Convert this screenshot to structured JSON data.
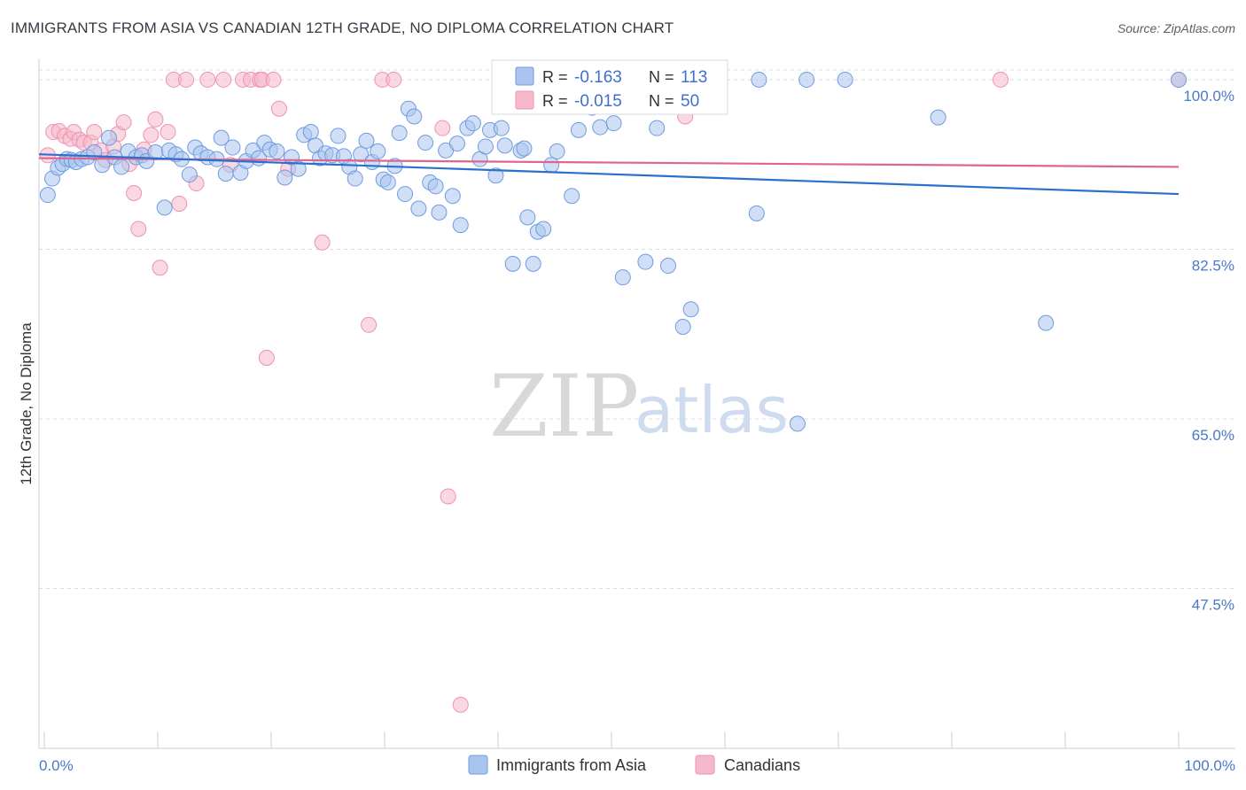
{
  "title": "IMMIGRANTS FROM ASIA VS CANADIAN 12TH GRADE, NO DIPLOMA CORRELATION CHART",
  "source": "Source: ZipAtlas.com",
  "watermark": {
    "zip": "ZIP",
    "atlas": "atlas"
  },
  "colors": {
    "blue_fill": "#a9c4ee",
    "blue_stroke": "#6f9be0",
    "blue_line": "#2b6fcf",
    "pink_fill": "#f6b8cb",
    "pink_stroke": "#ee93af",
    "pink_line": "#e0648f",
    "grid": "#d9dde3",
    "axis_label": "#4a78c8"
  },
  "legend_box": {
    "r_label": "R = ",
    "n_label": "N = ",
    "rows": [
      {
        "series": "Immigrants from Asia",
        "r": "-0.163",
        "n": "113"
      },
      {
        "series": "Canadians",
        "r": "-0.015",
        "n": "50"
      }
    ]
  },
  "bottom_legend": [
    "Immigrants from Asia",
    "Canadians"
  ],
  "chart_data": {
    "type": "scatter",
    "xlabel": "",
    "ylabel": "12th Grade, No Diploma",
    "xlim": [
      0,
      100
    ],
    "ylim": [
      31,
      101
    ],
    "x_tick_labels": [
      "0.0%",
      "100.0%"
    ],
    "y_ticks": [
      100.0,
      82.5,
      65.0,
      47.5
    ],
    "y_tick_labels": [
      "100.0%",
      "82.5%",
      "65.0%",
      "47.5%"
    ],
    "grid": true,
    "series": [
      {
        "name": "Immigrants from Asia",
        "color": "#a9c4ee",
        "trend": {
          "x": [
            0,
            100
          ],
          "y": [
            92.3,
            88.2
          ]
        },
        "points": [
          [
            0.3,
            88.1
          ],
          [
            0.7,
            89.8
          ],
          [
            1.2,
            90.9
          ],
          [
            1.6,
            91.3
          ],
          [
            2.0,
            91.8
          ],
          [
            2.4,
            91.7
          ],
          [
            2.8,
            91.5
          ],
          [
            3.3,
            91.8
          ],
          [
            3.8,
            92.0
          ],
          [
            4.4,
            92.5
          ],
          [
            5.1,
            91.2
          ],
          [
            5.7,
            94.0
          ],
          [
            6.2,
            92.0
          ],
          [
            6.8,
            91.0
          ],
          [
            7.4,
            92.6
          ],
          [
            8.1,
            92.0
          ],
          [
            8.6,
            92.2
          ],
          [
            9.0,
            91.6
          ],
          [
            9.8,
            92.5
          ],
          [
            10.6,
            86.8
          ],
          [
            11.0,
            92.7
          ],
          [
            11.6,
            92.3
          ],
          [
            12.1,
            91.8
          ],
          [
            12.8,
            90.2
          ],
          [
            13.3,
            93.0
          ],
          [
            13.8,
            92.4
          ],
          [
            14.4,
            92.0
          ],
          [
            15.2,
            91.8
          ],
          [
            15.6,
            94.0
          ],
          [
            16.0,
            90.3
          ],
          [
            16.6,
            93.0
          ],
          [
            17.3,
            90.4
          ],
          [
            17.8,
            91.6
          ],
          [
            18.4,
            92.7
          ],
          [
            18.9,
            91.9
          ],
          [
            19.4,
            93.5
          ],
          [
            19.9,
            92.8
          ],
          [
            20.5,
            92.6
          ],
          [
            21.2,
            89.9
          ],
          [
            21.8,
            92.0
          ],
          [
            22.4,
            90.8
          ],
          [
            22.9,
            94.3
          ],
          [
            23.5,
            94.6
          ],
          [
            23.9,
            93.2
          ],
          [
            24.3,
            91.9
          ],
          [
            24.8,
            92.4
          ],
          [
            25.4,
            92.2
          ],
          [
            25.9,
            94.2
          ],
          [
            26.4,
            92.1
          ],
          [
            26.9,
            91.0
          ],
          [
            27.4,
            89.8
          ],
          [
            27.9,
            92.3
          ],
          [
            28.4,
            93.7
          ],
          [
            28.9,
            91.5
          ],
          [
            29.4,
            92.6
          ],
          [
            29.9,
            89.7
          ],
          [
            30.3,
            89.4
          ],
          [
            30.9,
            91.1
          ],
          [
            31.3,
            94.5
          ],
          [
            31.8,
            88.2
          ],
          [
            32.1,
            97.0
          ],
          [
            32.6,
            96.2
          ],
          [
            33.0,
            86.7
          ],
          [
            33.6,
            93.5
          ],
          [
            34.0,
            89.4
          ],
          [
            34.5,
            89.0
          ],
          [
            34.8,
            86.3
          ],
          [
            35.4,
            92.7
          ],
          [
            36.0,
            88.0
          ],
          [
            36.4,
            93.4
          ],
          [
            36.7,
            85.0
          ],
          [
            37.3,
            95.0
          ],
          [
            37.8,
            95.5
          ],
          [
            38.4,
            91.8
          ],
          [
            38.9,
            93.1
          ],
          [
            39.3,
            94.8
          ],
          [
            39.8,
            90.1
          ],
          [
            40.3,
            95.0
          ],
          [
            40.6,
            93.2
          ],
          [
            41.3,
            81.0
          ],
          [
            42.0,
            92.7
          ],
          [
            42.3,
            92.9
          ],
          [
            42.6,
            85.8
          ],
          [
            43.1,
            81.0
          ],
          [
            43.5,
            84.3
          ],
          [
            44.0,
            84.6
          ],
          [
            44.7,
            91.2
          ],
          [
            45.2,
            92.6
          ],
          [
            46.0,
            100.0
          ],
          [
            46.5,
            88.0
          ],
          [
            47.1,
            94.8
          ],
          [
            47.7,
            99.8
          ],
          [
            48.3,
            97.1
          ],
          [
            49.0,
            95.1
          ],
          [
            49.6,
            98.2
          ],
          [
            50.2,
            95.5
          ],
          [
            51.0,
            79.6
          ],
          [
            52.2,
            98.0
          ],
          [
            53.0,
            81.2
          ],
          [
            54.0,
            95.0
          ],
          [
            55.0,
            80.8
          ],
          [
            56.3,
            74.5
          ],
          [
            57.0,
            76.3
          ],
          [
            62.8,
            86.2
          ],
          [
            63.0,
            100.0
          ],
          [
            66.4,
            64.5
          ],
          [
            67.2,
            100.0
          ],
          [
            70.6,
            100.0
          ],
          [
            78.8,
            96.1
          ],
          [
            88.3,
            74.9
          ],
          [
            100.0,
            100.0
          ]
        ]
      },
      {
        "name": "Canadians",
        "color": "#f6b8cb",
        "trend": {
          "x": [
            0,
            100
          ],
          "y": [
            91.9,
            91.0
          ]
        },
        "points": [
          [
            0.3,
            92.2
          ],
          [
            0.8,
            94.6
          ],
          [
            1.3,
            94.7
          ],
          [
            1.8,
            94.2
          ],
          [
            2.3,
            93.9
          ],
          [
            2.6,
            94.6
          ],
          [
            3.1,
            93.8
          ],
          [
            3.5,
            93.5
          ],
          [
            4.1,
            93.5
          ],
          [
            4.4,
            94.6
          ],
          [
            5.0,
            92.7
          ],
          [
            5.4,
            91.7
          ],
          [
            6.1,
            93.1
          ],
          [
            6.5,
            94.4
          ],
          [
            7.0,
            95.6
          ],
          [
            7.5,
            91.3
          ],
          [
            7.9,
            88.3
          ],
          [
            8.3,
            84.6
          ],
          [
            8.8,
            92.8
          ],
          [
            9.4,
            94.3
          ],
          [
            9.8,
            95.9
          ],
          [
            10.2,
            80.6
          ],
          [
            10.9,
            94.6
          ],
          [
            11.4,
            100.0
          ],
          [
            11.9,
            87.2
          ],
          [
            12.5,
            100.0
          ],
          [
            13.4,
            89.3
          ],
          [
            14.4,
            100.0
          ],
          [
            15.8,
            100.0
          ],
          [
            16.4,
            91.2
          ],
          [
            17.5,
            100.0
          ],
          [
            18.2,
            100.0
          ],
          [
            19.0,
            100.0
          ],
          [
            19.2,
            100.0
          ],
          [
            19.6,
            71.3
          ],
          [
            20.2,
            100.0
          ],
          [
            20.7,
            97.0
          ],
          [
            21.5,
            90.8
          ],
          [
            24.5,
            83.2
          ],
          [
            28.6,
            74.7
          ],
          [
            29.8,
            100.0
          ],
          [
            30.8,
            100.0
          ],
          [
            35.1,
            95.0
          ],
          [
            35.6,
            57.0
          ],
          [
            36.7,
            35.5
          ],
          [
            40.2,
            100.0
          ],
          [
            47.1,
            100.0
          ],
          [
            56.5,
            96.2
          ],
          [
            84.3,
            100.0
          ],
          [
            100.0,
            100.0
          ]
        ]
      }
    ]
  }
}
